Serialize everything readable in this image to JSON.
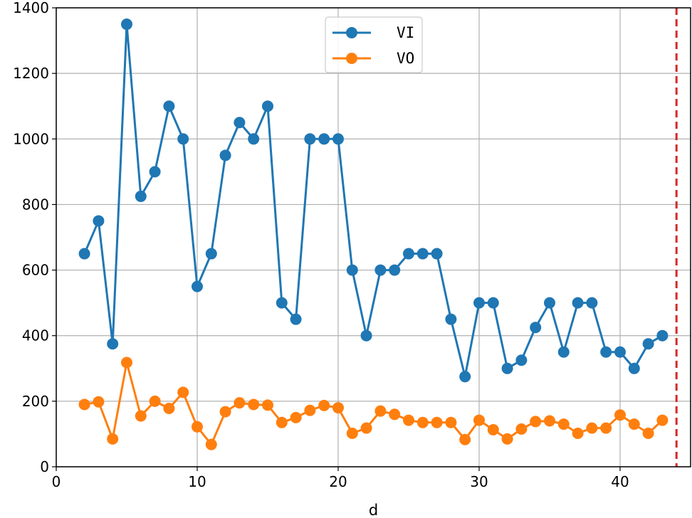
{
  "chart_data": {
    "type": "line",
    "title": "",
    "xlabel": "d",
    "ylabel": "",
    "xlim": [
      0,
      45
    ],
    "ylim": [
      0,
      1400
    ],
    "xticks": [
      0,
      10,
      20,
      30,
      40
    ],
    "yticks": [
      0,
      200,
      400,
      600,
      800,
      1000,
      1200,
      1400
    ],
    "grid": true,
    "legend_position": "top-center",
    "vline": {
      "x": 44,
      "color": "#d62728",
      "style": "dashed"
    },
    "x": [
      2,
      3,
      4,
      5,
      6,
      7,
      8,
      9,
      10,
      11,
      12,
      13,
      14,
      15,
      16,
      17,
      18,
      19,
      20,
      21,
      22,
      23,
      24,
      25,
      26,
      27,
      28,
      29,
      30,
      31,
      32,
      33,
      34,
      35,
      36,
      37,
      38,
      39,
      40,
      41,
      42,
      43
    ],
    "series": [
      {
        "name": "VI",
        "color": "#1f77b4",
        "values": [
          650,
          750,
          375,
          1350,
          825,
          900,
          1100,
          1000,
          550,
          650,
          950,
          1050,
          1000,
          1100,
          500,
          450,
          1000,
          1000,
          1000,
          600,
          400,
          600,
          600,
          650,
          650,
          650,
          450,
          275,
          500,
          500,
          300,
          325,
          425,
          500,
          350,
          500,
          500,
          350,
          350,
          300,
          375,
          400
        ]
      },
      {
        "name": "VO",
        "color": "#ff7f0e",
        "values": [
          190,
          198,
          85,
          318,
          155,
          200,
          178,
          227,
          122,
          68,
          168,
          195,
          190,
          188,
          135,
          150,
          172,
          187,
          180,
          102,
          118,
          170,
          160,
          142,
          135,
          135,
          135,
          83,
          142,
          113,
          85,
          115,
          138,
          140,
          130,
          102,
          118,
          118,
          158,
          130,
          102,
          142
        ]
      }
    ]
  }
}
